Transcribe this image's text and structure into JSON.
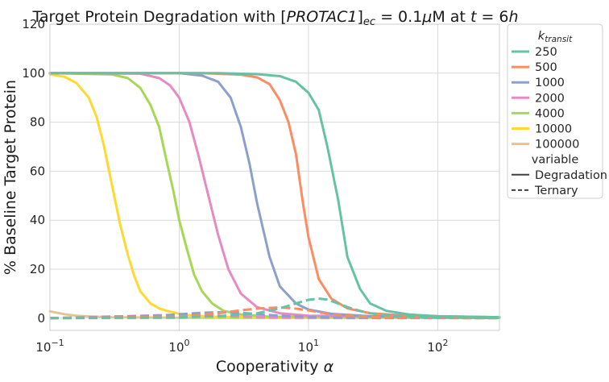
{
  "chart_data": {
    "type": "line",
    "title": {
      "prefix": "Target Protein Degradation with [",
      "drug": "PROTAC1",
      "bracket_close": "]",
      "sub": "ec",
      "middle": " = 0.1",
      "mu": "μ",
      "unit": "M at ",
      "t_var": "t",
      "t_value": " = 6",
      "t_unit": "h"
    },
    "xlabel": {
      "text": "Cooperativity ",
      "symbol": "α"
    },
    "ylabel": "% Baseline Target Protein",
    "xscale": "log",
    "xlim": [
      0.1,
      300
    ],
    "ylim": [
      -5,
      120
    ],
    "xticks": [
      {
        "value": 0.1,
        "base": "10",
        "exp": "−1"
      },
      {
        "value": 1,
        "base": "10",
        "exp": "0"
      },
      {
        "value": 10,
        "base": "10",
        "exp": "1"
      },
      {
        "value": 100,
        "base": "10",
        "exp": "2"
      }
    ],
    "yticks": [
      {
        "value": 0,
        "label": "0"
      },
      {
        "value": 20,
        "label": "20"
      },
      {
        "value": 40,
        "label": "40"
      },
      {
        "value": 60,
        "label": "60"
      },
      {
        "value": 80,
        "label": "80"
      },
      {
        "value": 100,
        "label": "100"
      },
      {
        "value": 120,
        "label": "120"
      }
    ],
    "grid": true,
    "legend": {
      "placement": "outside-top-right",
      "hue_title": {
        "base": "k",
        "sub": "transit"
      },
      "style_title": "variable",
      "styles": [
        {
          "label": "Degradation",
          "dash": "solid"
        },
        {
          "label": "Ternary",
          "dash": "dashed"
        }
      ]
    },
    "series": [
      {
        "name": "250",
        "color": "#66c2a5",
        "degradation": {
          "x": [
            0.1,
            2,
            4,
            6,
            8,
            10,
            12,
            14,
            17,
            20,
            25,
            30,
            40,
            60,
            100,
            300
          ],
          "y": [
            100,
            100,
            99.6,
            98.8,
            96.5,
            92,
            85,
            70,
            48,
            25,
            12,
            6,
            3,
            1.5,
            0.8,
            0.4
          ]
        },
        "ternary": {
          "x": [
            0.1,
            1,
            2,
            4,
            6,
            8,
            10,
            12,
            14,
            17,
            20,
            25,
            30,
            40,
            60,
            100,
            300
          ],
          "y": [
            0,
            0.3,
            0.8,
            2,
            4,
            6,
            7.5,
            8,
            7.6,
            6,
            4.5,
            3,
            2,
            1.2,
            0.6,
            0.3,
            0.1
          ]
        }
      },
      {
        "name": "500",
        "color": "#fc8d62",
        "degradation": {
          "x": [
            0.1,
            1.5,
            3,
            4,
            5,
            6,
            7,
            8,
            9,
            10,
            12,
            15,
            20,
            30,
            60,
            300
          ],
          "y": [
            100,
            100,
            99.4,
            98.3,
            95.5,
            89,
            80,
            67,
            48,
            33,
            16,
            8,
            4,
            2,
            1,
            0.4
          ]
        },
        "ternary": {
          "x": [
            0.1,
            1,
            2,
            3,
            4,
            6,
            8,
            10,
            12,
            15,
            20,
            30,
            60,
            300
          ],
          "y": [
            0,
            0.6,
            2,
            3.2,
            3.9,
            4.4,
            3.9,
            3.2,
            2.4,
            1.6,
            1,
            0.5,
            0.2,
            0.1
          ]
        }
      },
      {
        "name": "1000",
        "color": "#8da0cb",
        "degradation": {
          "x": [
            0.1,
            1,
            1.5,
            2,
            2.5,
            3,
            3.5,
            4,
            5,
            6,
            8,
            10,
            15,
            30,
            300
          ],
          "y": [
            100,
            100,
            99,
            96.5,
            90,
            78,
            63,
            47,
            25,
            13,
            6,
            3.5,
            1.8,
            0.8,
            0.3
          ]
        },
        "ternary": {
          "x": [
            0.1,
            0.7,
            1,
            1.5,
            2,
            3,
            4,
            6,
            10,
            20,
            300
          ],
          "y": [
            0,
            1,
            1.6,
            2.2,
            2.4,
            2.2,
            1.7,
            1,
            0.5,
            0.2,
            0.05
          ]
        }
      },
      {
        "name": "2000",
        "color": "#e78ac3",
        "degradation": {
          "x": [
            0.1,
            0.5,
            0.7,
            0.85,
            1,
            1.2,
            1.4,
            1.7,
            2,
            2.4,
            3,
            4,
            6,
            10,
            300
          ],
          "y": [
            100,
            99.8,
            98,
            95,
            90,
            80,
            67,
            49,
            34,
            20,
            10,
            4.5,
            2,
            1,
            0.3
          ]
        },
        "ternary": {
          "x": [
            0.1,
            0.4,
            0.7,
            1,
            1.5,
            2,
            3,
            5,
            10,
            300
          ],
          "y": [
            0,
            0.8,
            1.2,
            1.4,
            1.3,
            1,
            0.7,
            0.4,
            0.2,
            0.05
          ]
        }
      },
      {
        "name": "4000",
        "color": "#a6d854",
        "degradation": {
          "x": [
            0.1,
            0.3,
            0.4,
            0.5,
            0.6,
            0.7,
            0.8,
            0.9,
            1,
            1.15,
            1.3,
            1.5,
            1.8,
            2.2,
            3,
            5,
            300
          ],
          "y": [
            100,
            99.5,
            98,
            94,
            87,
            78,
            64,
            52,
            40,
            28,
            18,
            11,
            6,
            3,
            1.5,
            0.6,
            0.2
          ]
        },
        "ternary": {
          "x": [
            0.1,
            0.2,
            0.4,
            0.7,
            1,
            2,
            5,
            300
          ],
          "y": [
            0,
            0.5,
            0.8,
            0.9,
            0.8,
            0.5,
            0.2,
            0.05
          ]
        }
      },
      {
        "name": "10000",
        "color": "#ffd92f",
        "degradation": {
          "x": [
            0.1,
            0.13,
            0.16,
            0.2,
            0.23,
            0.26,
            0.3,
            0.35,
            0.4,
            0.45,
            0.5,
            0.6,
            0.7,
            0.8,
            1,
            1.3,
            2,
            300
          ],
          "y": [
            99.5,
            98.5,
            96,
            90,
            82,
            71,
            55,
            38,
            26,
            17,
            11,
            6,
            4,
            3,
            1.8,
            1,
            0.5,
            0.1
          ]
        },
        "ternary": {
          "x": [
            0.1,
            0.3,
            1,
            3,
            300
          ],
          "y": [
            0,
            0.2,
            0.3,
            0.2,
            0.05
          ]
        }
      },
      {
        "name": "100000",
        "color": "#e5c494",
        "degradation": {
          "x": [
            0.1,
            0.13,
            0.16,
            0.2,
            0.3,
            0.5,
            1,
            300
          ],
          "y": [
            2.8,
            1.6,
            1,
            0.7,
            0.4,
            0.3,
            0.2,
            0.05
          ]
        },
        "ternary": {
          "x": [
            0.1,
            1,
            300
          ],
          "y": [
            0,
            0.05,
            0
          ]
        }
      }
    ]
  }
}
